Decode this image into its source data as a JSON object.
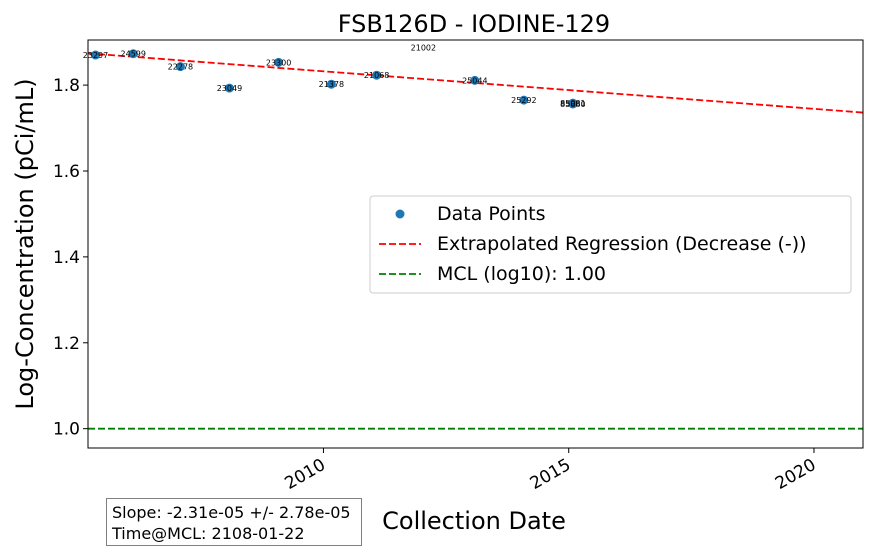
{
  "chart_data": {
    "type": "scatter",
    "title": "FSB126D - IODINE-129",
    "xlabel": "Collection Date",
    "ylabel": "Log-Concentration (pCi/mL)",
    "xlim": [
      "2005-03-15",
      "2020-12-31"
    ],
    "ylim": [
      0.955,
      1.905
    ],
    "x_ticks": [
      "2010",
      "2015",
      "2020"
    ],
    "y_ticks": [
      "1.0",
      "1.2",
      "1.4",
      "1.6",
      "1.8"
    ],
    "grid": false,
    "legend": {
      "placement": "center-right",
      "entries": [
        {
          "label": "Data Points",
          "style": "marker",
          "color": "#1f77b4"
        },
        {
          "label": "Extrapolated Regression (Decrease (-))",
          "style": "dashed",
          "color": "#ff0000"
        },
        {
          "label": "MCL (log10): 1.00",
          "style": "dashed",
          "color": "#008000"
        }
      ]
    },
    "points": [
      {
        "x": "2005-05-10",
        "y": 1.87,
        "label": "23297"
      },
      {
        "x": "2006-02-15",
        "y": 1.873,
        "label": "24599"
      },
      {
        "x": "2007-02-01",
        "y": 1.843,
        "label": "22278"
      },
      {
        "x": "2008-02-01",
        "y": 1.793,
        "label": "23049"
      },
      {
        "x": "2009-02-01",
        "y": 1.853,
        "label": "23300"
      },
      {
        "x": "2010-03-01",
        "y": 1.802,
        "label": "21378"
      },
      {
        "x": "2011-02-01",
        "y": 1.823,
        "label": "21068"
      },
      {
        "x": "2013-02-01",
        "y": 1.811,
        "label": "25044"
      },
      {
        "x": "2014-02-01",
        "y": 1.765,
        "label": "25292"
      },
      {
        "x": "2015-02-01",
        "y": 1.758,
        "label": "85081"
      },
      {
        "x": "2015-02-01",
        "y": 1.756,
        "label": "85880"
      }
    ],
    "annotations": [
      {
        "x": "2012-01-15",
        "y": 1.888,
        "label": "21002"
      }
    ],
    "regression": {
      "color": "#ff0000",
      "from": [
        "2005-03-15",
        1.874
      ],
      "to": [
        "2020-12-31",
        1.736
      ]
    },
    "mcl": {
      "value": 1.0,
      "color": "#008000"
    },
    "stats": {
      "slope_text": "Slope: -2.31e-05 +/- 2.78e-05",
      "time_at_mcl_text": "Time@MCL: 2108-01-22"
    }
  }
}
